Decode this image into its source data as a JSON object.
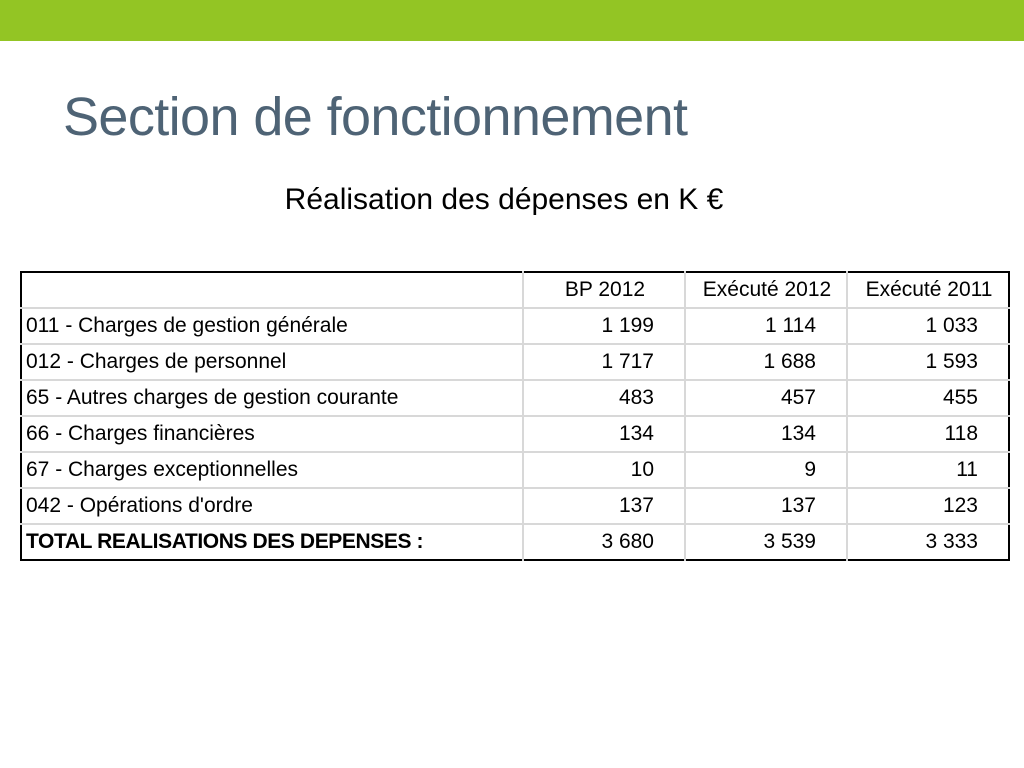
{
  "slide": {
    "title": "Section de fonctionnement",
    "subtitle": "Réalisation des dépenses en K €",
    "accent_color": "#93c524",
    "title_color": "#4e6375"
  },
  "table": {
    "columns": [
      "",
      "BP 2012",
      "Exécuté 2012",
      "Exécuté 2011"
    ],
    "rows": [
      {
        "label": "011 - Charges de gestion générale",
        "bp_2012": "1 199",
        "execute_2012": "1 114",
        "execute_2011": "1 033"
      },
      {
        "label": "012 - Charges de personnel",
        "bp_2012": "1 717",
        "execute_2012": "1 688",
        "execute_2011": "1 593"
      },
      {
        "label": "65 - Autres charges de gestion courante",
        "bp_2012": "483",
        "execute_2012": "457",
        "execute_2011": "455"
      },
      {
        "label": "66 - Charges financières",
        "bp_2012": "134",
        "execute_2012": "134",
        "execute_2011": "118"
      },
      {
        "label": "67 - Charges exceptionnelles",
        "bp_2012": "10",
        "execute_2012": "9",
        "execute_2011": "11"
      },
      {
        "label": "042 - Opérations d'ordre",
        "bp_2012": "137",
        "execute_2012": "137",
        "execute_2011": "123"
      }
    ],
    "total": {
      "label": "TOTAL REALISATIONS DES DEPENSES :",
      "bp_2012": "3 680",
      "execute_2012": "3 539",
      "execute_2011": "3 333"
    }
  }
}
